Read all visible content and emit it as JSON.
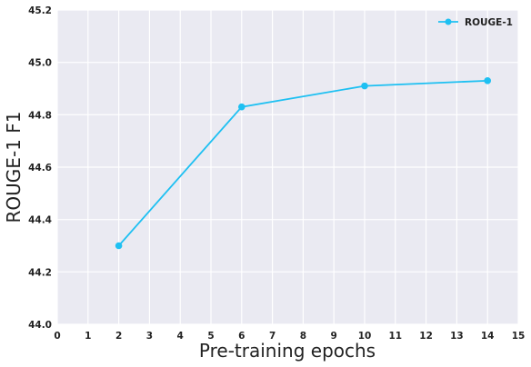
{
  "chart_data": {
    "type": "line",
    "xlabel": "Pre-training epochs",
    "ylabel": "ROUGE-1 F1",
    "xlim": [
      0,
      15
    ],
    "ylim": [
      44.0,
      45.2
    ],
    "x_ticks": [
      "0",
      "1",
      "2",
      "3",
      "4",
      "5",
      "6",
      "7",
      "8",
      "9",
      "10",
      "11",
      "12",
      "13",
      "14",
      "15"
    ],
    "y_ticks": [
      "44.0",
      "44.2",
      "44.4",
      "44.6",
      "44.8",
      "45.0",
      "45.2"
    ],
    "grid": true,
    "legend_position": "top-right",
    "series": [
      {
        "name": "ROUGE-1",
        "color": "#1ec0f2",
        "marker": "circle",
        "x": [
          2,
          6,
          10,
          14
        ],
        "y": [
          44.3,
          44.83,
          44.91,
          44.93
        ]
      }
    ]
  }
}
